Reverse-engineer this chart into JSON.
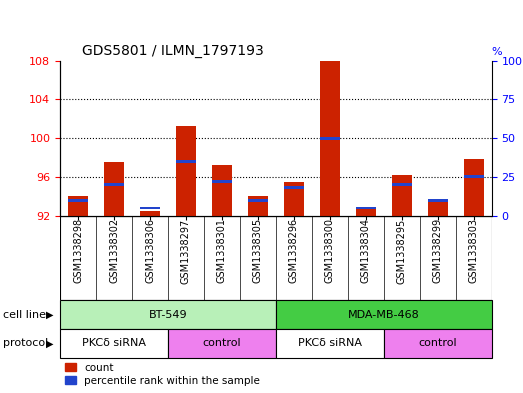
{
  "title": "GDS5801 / ILMN_1797193",
  "samples": [
    "GSM1338298",
    "GSM1338302",
    "GSM1338306",
    "GSM1338297",
    "GSM1338301",
    "GSM1338305",
    "GSM1338296",
    "GSM1338300",
    "GSM1338304",
    "GSM1338295",
    "GSM1338299",
    "GSM1338303"
  ],
  "counts": [
    94.0,
    97.5,
    92.5,
    101.3,
    97.2,
    94.0,
    95.5,
    108.0,
    92.8,
    96.2,
    93.5,
    97.8
  ],
  "percentiles": [
    10,
    20,
    5,
    35,
    22,
    10,
    18,
    50,
    5,
    20,
    10,
    25
  ],
  "ylim_left": [
    92,
    108
  ],
  "ylim_right": [
    0,
    100
  ],
  "yticks_left": [
    92,
    96,
    100,
    104,
    108
  ],
  "yticks_right": [
    0,
    25,
    50,
    75,
    100
  ],
  "bar_color": "#cc2200",
  "percentile_color": "#2244cc",
  "cell_line_color_bt": "#b8f0b8",
  "cell_line_color_mda": "#44cc44",
  "protocol_color_sirna": "#ffffff",
  "protocol_color_control": "#ee80ee",
  "cell_lines": [
    {
      "label": "BT-549",
      "start": 0,
      "end": 5,
      "color": "#b8f0b8"
    },
    {
      "label": "MDA-MB-468",
      "start": 6,
      "end": 11,
      "color": "#44cc44"
    }
  ],
  "protocols": [
    {
      "label": "PKCδ siRNA",
      "start": 0,
      "end": 2,
      "color": "#ffffff"
    },
    {
      "label": "control",
      "start": 3,
      "end": 5,
      "color": "#ee80ee"
    },
    {
      "label": "PKCδ siRNA",
      "start": 6,
      "end": 8,
      "color": "#ffffff"
    },
    {
      "label": "control",
      "start": 9,
      "end": 11,
      "color": "#ee80ee"
    }
  ],
  "cell_line_label": "cell line",
  "protocol_label": "protocol",
  "legend_count_label": "count",
  "legend_percentile_label": "percentile rank within the sample",
  "bar_width": 0.55
}
